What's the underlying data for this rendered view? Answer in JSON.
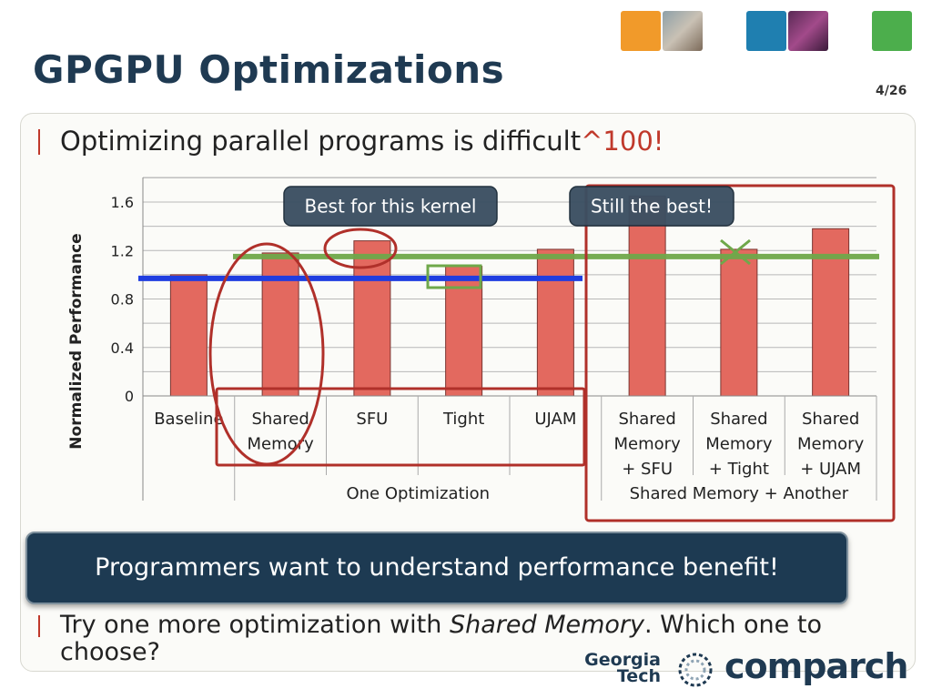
{
  "slide": {
    "title": "GPGPU Optimizations",
    "page_number": "4/26",
    "bullet1_text": "Optimizing parallel programs is difficult",
    "bullet1_highlight": "^100!",
    "callout_best": "Best for this kernel",
    "callout_still": "Still the best!",
    "overlay_message": "Programmers want to understand performance benefit!",
    "bullet2_prefix": "Try one more optimization with ",
    "bullet2_emphasis": "Shared Memory",
    "bullet2_suffix": ". Which one to choose?",
    "logo_gt_line1": "Georgia",
    "logo_gt_line2": "Tech",
    "logo_comparch": "comparch",
    "colors": {
      "title": "#1f3a52",
      "bar": "#e3695f",
      "baseline_line": "#1f3de0",
      "best_line": "#6fa84a",
      "annotation_red": "#b0302a",
      "overlay": "#1d3a52"
    }
  },
  "chart_data": {
    "type": "bar",
    "title": "",
    "xlabel": "",
    "ylabel": "Normalized Performance",
    "ylim": [
      0,
      1.8
    ],
    "yticks": [
      0,
      0.4,
      0.8,
      1.2,
      1.6
    ],
    "ytick_labels": [
      "0",
      "0.4",
      "0.8",
      "1.2",
      "1.6"
    ],
    "grid": true,
    "categories": [
      {
        "label": [
          "Baseline"
        ],
        "value": 1.0
      },
      {
        "label": [
          "Shared",
          "Memory"
        ],
        "value": 1.18
      },
      {
        "label": [
          "SFU"
        ],
        "value": 1.28
      },
      {
        "label": [
          "Tight"
        ],
        "value": 1.07
      },
      {
        "label": [
          "UJAM"
        ],
        "value": 1.21
      },
      {
        "label": [
          "Shared",
          "Memory",
          "+ SFU"
        ],
        "value": 1.65
      },
      {
        "label": [
          "Shared",
          "Memory",
          "+ Tight"
        ],
        "value": 1.21
      },
      {
        "label": [
          "Shared",
          "Memory",
          "+ UJAM"
        ],
        "value": 1.38
      }
    ],
    "groups": [
      {
        "label": "One Optimization",
        "start": 1,
        "end": 4
      },
      {
        "label": "Shared Memory + Another",
        "start": 5,
        "end": 7
      }
    ],
    "reference_lines": [
      {
        "value": 0.97
      },
      {
        "value": 1.15
      }
    ]
  }
}
